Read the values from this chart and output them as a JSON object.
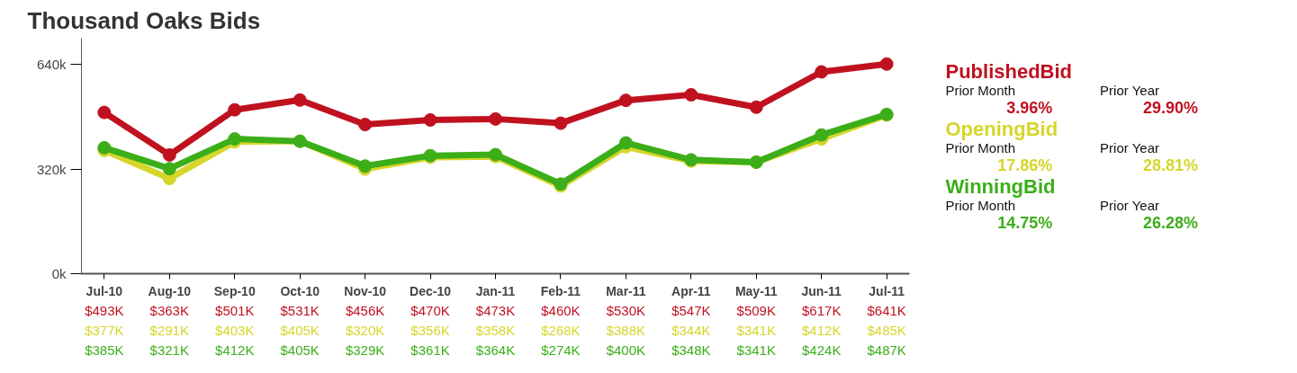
{
  "chart_data": {
    "type": "line",
    "title": "Thousand Oaks Bids",
    "categories": [
      "Jul-10",
      "Aug-10",
      "Sep-10",
      "Oct-10",
      "Nov-10",
      "Dec-10",
      "Jan-11",
      "Feb-11",
      "Mar-11",
      "Apr-11",
      "May-11",
      "Jun-11",
      "Jul-11"
    ],
    "series": [
      {
        "name": "PublishedBid",
        "color": "#c0111f",
        "values": [
          493,
          363,
          501,
          531,
          456,
          470,
          473,
          460,
          530,
          547,
          509,
          617,
          641
        ],
        "value_labels": [
          "$493K",
          "$363K",
          "$501K",
          "$531K",
          "$456K",
          "$470K",
          "$473K",
          "$460K",
          "$530K",
          "$547K",
          "$509K",
          "$617K",
          "$641K"
        ]
      },
      {
        "name": "OpeningBid",
        "color": "#d6d62a",
        "values": [
          377,
          291,
          403,
          405,
          320,
          356,
          358,
          268,
          388,
          344,
          341,
          412,
          485
        ],
        "value_labels": [
          "$377K",
          "$291K",
          "$403K",
          "$405K",
          "$320K",
          "$356K",
          "$358K",
          "$268K",
          "$388K",
          "$344K",
          "$341K",
          "$412K",
          "$485K"
        ]
      },
      {
        "name": "WinningBid",
        "color": "#3cae1a",
        "values": [
          385,
          321,
          412,
          405,
          329,
          361,
          364,
          274,
          400,
          348,
          341,
          424,
          487
        ],
        "value_labels": [
          "$385K",
          "$321K",
          "$412K",
          "$405K",
          "$329K",
          "$361K",
          "$364K",
          "$274K",
          "$400K",
          "$348K",
          "$341K",
          "$424K",
          "$487K"
        ]
      }
    ],
    "ylim": [
      0,
      720
    ],
    "yticks": [
      {
        "value": 0,
        "label": "0k"
      },
      {
        "value": 320,
        "label": "320k"
      },
      {
        "value": 640,
        "label": "640k"
      }
    ],
    "annotations": [
      "Prior Month",
      "3.96%",
      "Prior Year",
      "29.90%",
      "Prior Month",
      "17.86%",
      "Prior Year",
      "28.81%",
      "Prior Month",
      "14.75%",
      "Prior Year",
      "26.28%"
    ],
    "legend": "right",
    "grid": false,
    "marker": "circle",
    "line_style": "solid"
  }
}
